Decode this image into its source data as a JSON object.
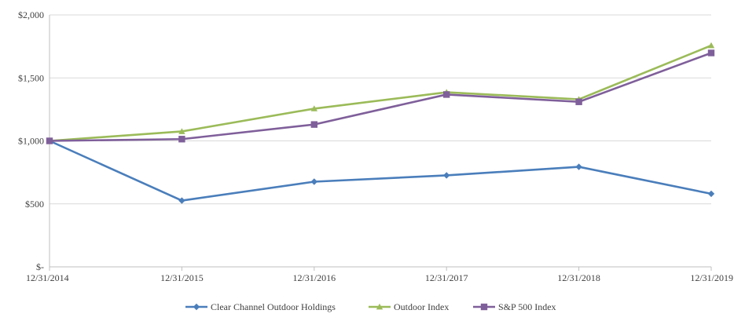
{
  "chart_data": {
    "type": "line",
    "title": "",
    "xlabel": "",
    "ylabel": "",
    "categories": [
      "12/31/2014",
      "12/31/2015",
      "12/31/2016",
      "12/31/2017",
      "12/31/2018",
      "12/31/2019"
    ],
    "ylim": [
      0,
      2000
    ],
    "yticks": [
      0,
      500,
      1000,
      1500,
      2000
    ],
    "ytick_labels": [
      "$-",
      "$500",
      "$1,000",
      "$1,500",
      "$2,000"
    ],
    "grid": true,
    "legend_position": "bottom",
    "series": [
      {
        "name": "Clear Channel Outdoor Holdings",
        "color": "#4a7ebb",
        "marker": "diamond",
        "values": [
          1000,
          526,
          676,
          726,
          794,
          580
        ]
      },
      {
        "name": "Outdoor Index",
        "color": "#9bbb59",
        "marker": "triangle",
        "values": [
          1000,
          1075,
          1256,
          1386,
          1330,
          1757
        ]
      },
      {
        "name": "S&P 500  Index",
        "color": "#7f5f9a",
        "marker": "square",
        "values": [
          1000,
          1014,
          1130,
          1368,
          1310,
          1698
        ]
      }
    ]
  }
}
